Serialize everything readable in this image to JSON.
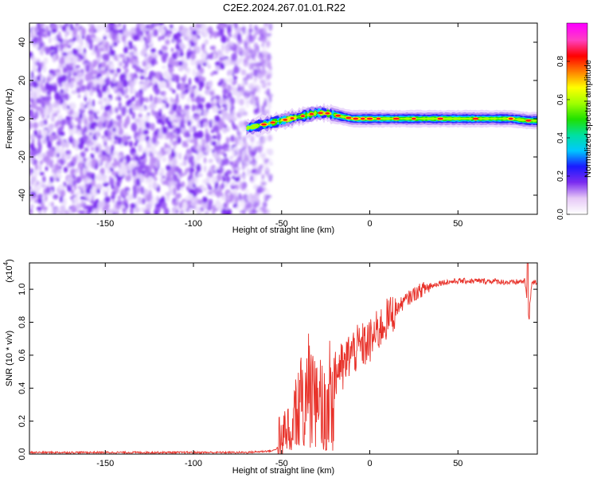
{
  "title": "C2E2.2024.267.01.01.R22",
  "chart_data": [
    {
      "type": "heatmap",
      "xlabel": "Height of straight line (km)",
      "ylabel": "Frequency (Hz)",
      "xlim": [
        -193,
        95
      ],
      "ylim": [
        -50,
        50
      ],
      "xticks": [
        -150,
        -100,
        -50,
        0,
        50
      ],
      "yticks": [
        -40,
        -20,
        0,
        20,
        40
      ],
      "colorbar": {
        "label": "Normalized spectral amplitude",
        "range": [
          0,
          1
        ],
        "ticks": [
          "0.0",
          "0.2",
          "0.4",
          "0.6",
          "0.8"
        ],
        "colors": [
          "#ffffff",
          "#e6c8f6",
          "#7b2cf0",
          "#1a1aff",
          "#00c8ff",
          "#00e0a0",
          "#20e000",
          "#a0ff00",
          "#ffff00",
          "#ff8000",
          "#ff0000",
          "#ff40c0",
          "#ff00ff"
        ]
      },
      "noise_region_x": [
        -193,
        -62
      ],
      "signal_track": {
        "x": [
          -70,
          -65,
          -60,
          -55,
          -50,
          -45,
          -40,
          -35,
          -30,
          -25,
          -20,
          -15,
          -10,
          -5,
          0,
          10,
          20,
          30,
          40,
          50,
          60,
          70,
          80,
          90,
          95
        ],
        "y": [
          -5,
          -4,
          -3,
          -2,
          -1,
          0,
          1,
          2,
          3,
          3,
          2,
          1,
          0,
          0,
          0,
          0,
          0,
          0,
          0,
          0,
          0,
          0,
          0,
          -1,
          -1
        ]
      }
    },
    {
      "type": "line",
      "xlabel": "Height of straight line (km)",
      "ylabel": "SNR (10 * v/v)",
      "yscale_label": "(x10",
      "yscale_exp": "4",
      "xlim": [
        -193,
        95
      ],
      "ylim": [
        0,
        1.16
      ],
      "xticks": [
        -150,
        -100,
        -50,
        0,
        50
      ],
      "yticks": [
        "0.0",
        "0.2",
        "0.4",
        "0.6",
        "0.8",
        "1.0"
      ],
      "color": "#e8322a",
      "series": [
        {
          "x": [
            -193,
            -70,
            -55,
            -52,
            -50,
            -45,
            -40,
            -38,
            -35,
            -30,
            -27,
            -25,
            -22,
            -20,
            -17,
            -15,
            -12,
            -10,
            -5,
            0,
            5,
            10,
            15,
            20,
            25,
            30,
            35,
            40,
            50,
            60,
            70,
            80,
            88,
            90,
            92,
            95
          ],
          "y": [
            0.01,
            0.01,
            0.02,
            0.04,
            0.07,
            0.25,
            0.45,
            0.25,
            0.5,
            0.3,
            0.55,
            0.2,
            0.5,
            0.45,
            0.55,
            0.5,
            0.6,
            0.62,
            0.65,
            0.68,
            0.75,
            0.82,
            0.88,
            0.93,
            0.97,
            1.0,
            1.02,
            1.04,
            1.05,
            1.05,
            1.05,
            1.04,
            1.05,
            0.85,
            1.04,
            1.04
          ]
        }
      ]
    }
  ]
}
